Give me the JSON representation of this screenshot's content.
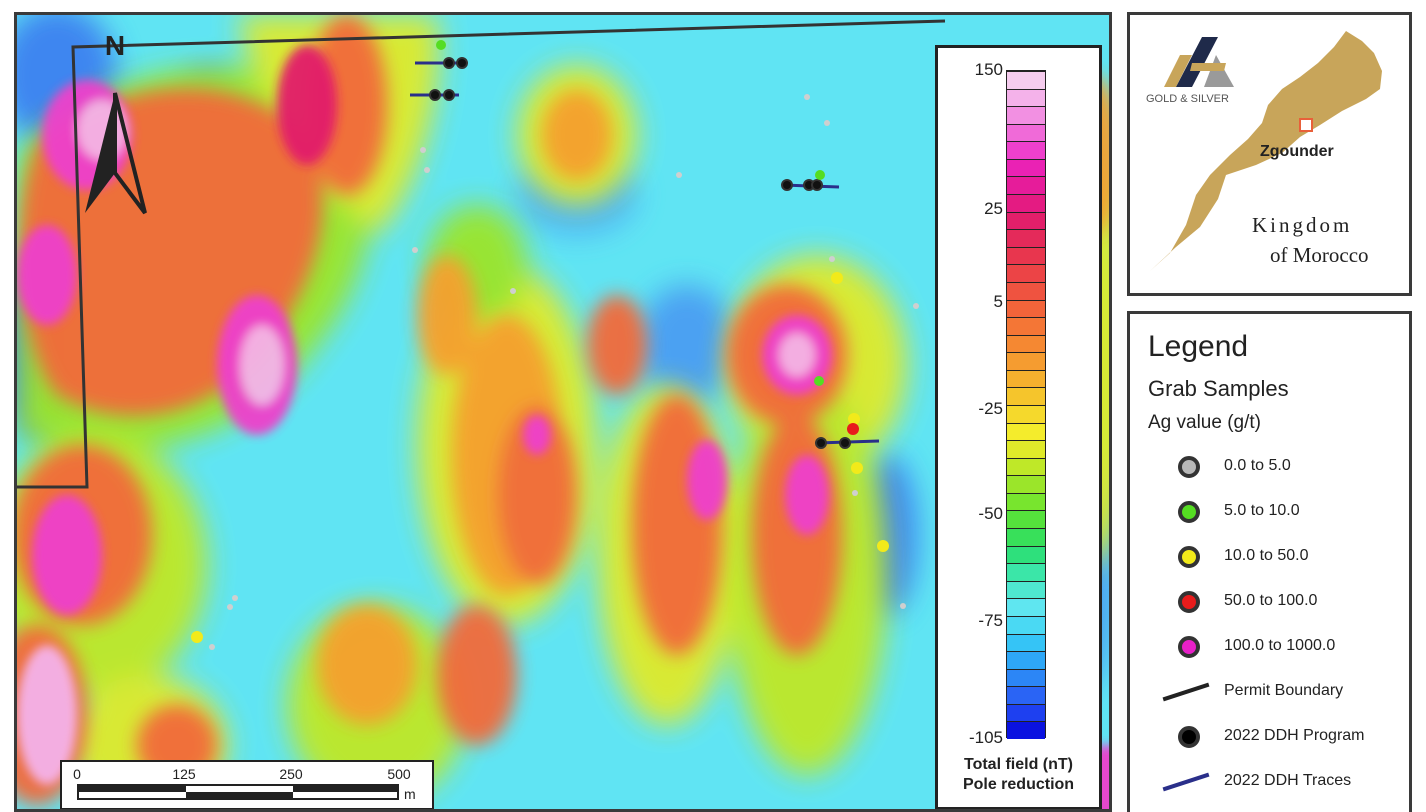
{
  "map": {
    "north_label": "N",
    "colorbar": {
      "ticks": [
        {
          "label": "150",
          "fraction": 0.0
        },
        {
          "label": "25",
          "fraction": 0.208
        },
        {
          "label": "5",
          "fraction": 0.348
        },
        {
          "label": "-25",
          "fraction": 0.508
        },
        {
          "label": "-50",
          "fraction": 0.665
        },
        {
          "label": "-75",
          "fraction": 0.825
        },
        {
          "label": "-105",
          "fraction": 1.0
        }
      ],
      "colors": [
        "#0a12e0",
        "#1e40f0",
        "#2a64f5",
        "#2c86f6",
        "#2ea7f7",
        "#35c4f6",
        "#4ad9f3",
        "#5fe6f0",
        "#4fe8d0",
        "#3be6a8",
        "#2ee07c",
        "#38e05a",
        "#55e23c",
        "#78e52e",
        "#9be52a",
        "#bfe828",
        "#dfea2a",
        "#f4ec2c",
        "#f5d92c",
        "#f5c52c",
        "#f5b02e",
        "#f59c30",
        "#f58832",
        "#f47636",
        "#f2643a",
        "#ef5340",
        "#ec4446",
        "#e8364e",
        "#e42a5a",
        "#e21f6a",
        "#e41b82",
        "#e61c9a",
        "#ea22b4",
        "#ee40cc",
        "#f06ad8",
        "#f290e2",
        "#f4b2ea",
        "#f5ccee"
      ],
      "title_line1": "Total field (nT)",
      "title_line2": "Pole reduction"
    },
    "scalebar": {
      "labels": [
        "0",
        "125",
        "250",
        "500"
      ],
      "unit": "m"
    }
  },
  "inset": {
    "logo_text": "GOLD & SILVER",
    "place_label": "Zgounder",
    "country_line1": "Kingdom",
    "country_line2": "of Morocco"
  },
  "legend": {
    "title": "Legend",
    "group_title": "Grab Samples",
    "unit_label": "Ag value (g/t)",
    "items": [
      {
        "label": "0.0 to 5.0",
        "symbol": "dot",
        "color": "#b8b8b8"
      },
      {
        "label": "5.0 to 10.0",
        "symbol": "dot",
        "color": "#55dd22"
      },
      {
        "label": "10.0 to 50.0",
        "symbol": "dot",
        "color": "#f2ea1a"
      },
      {
        "label": "50.0 to 100.0",
        "symbol": "dot",
        "color": "#e81c1c"
      },
      {
        "label": "100.0 to 1000.0",
        "symbol": "dot",
        "color": "#e820c8"
      },
      {
        "label": "Permit Boundary",
        "symbol": "line",
        "color": "#222222"
      },
      {
        "label": "2022 DDH Program",
        "symbol": "dot",
        "color": "#000000"
      },
      {
        "label": "2022 DDH Traces",
        "symbol": "line",
        "color": "#2a2f8a"
      }
    ]
  }
}
